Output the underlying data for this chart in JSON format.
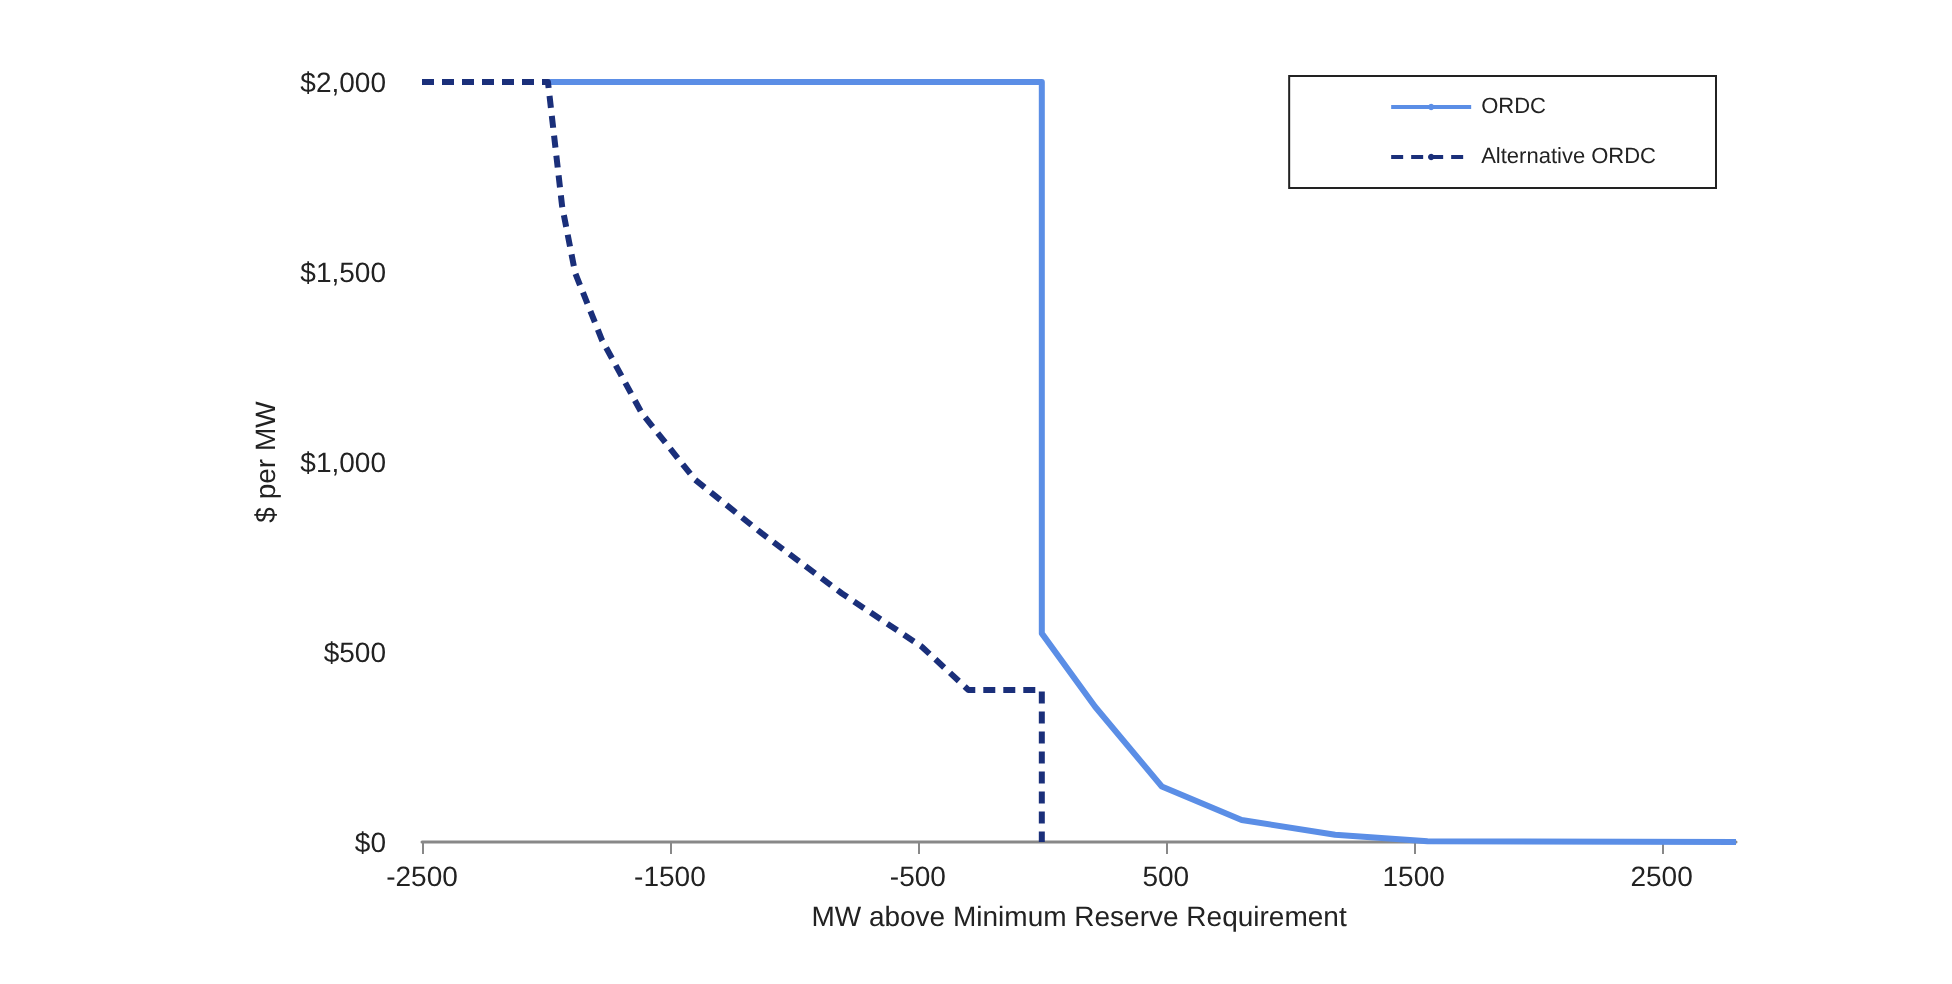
{
  "chart_data": {
    "type": "line",
    "xlabel": "MW above Minimum Reserve Requirement",
    "ylabel": "$ per MW",
    "xlim": [
      -2500,
      2800
    ],
    "xticks": [
      -2500,
      -1500,
      -500,
      500,
      1500,
      2500
    ],
    "ylim": [
      0,
      2000
    ],
    "yticks": [
      {
        "value": 0,
        "label": "$0"
      },
      {
        "value": 500,
        "label": "$500"
      },
      {
        "value": 1000,
        "label": "$1,000"
      },
      {
        "value": 1500,
        "label": "$1,500"
      },
      {
        "value": 2000,
        "label": "$2,000"
      }
    ],
    "grid": false,
    "legend": "top right",
    "marker": "none",
    "series": [
      {
        "name": "ORDC",
        "color": "#5b8ee6",
        "line_style": "solid",
        "x": [
          -2000,
          0,
          0,
          215,
          484,
          806,
          1183,
          1556,
          2800
        ],
        "values": [
          2000,
          2000,
          549,
          356,
          146,
          58,
          19,
          2,
          0
        ]
      },
      {
        "name": "Alternative ORDC",
        "color": "#1a2f7a",
        "line_style": "dashed",
        "x": [
          -2500,
          -1992,
          -1935,
          -1882,
          -1774,
          -1613,
          -1398,
          -1129,
          -806,
          -484,
          -296,
          0,
          0
        ],
        "values": [
          2000,
          2000,
          1674,
          1497,
          1321,
          1128,
          953,
          812,
          654,
          514,
          400,
          400,
          0
        ]
      }
    ]
  }
}
